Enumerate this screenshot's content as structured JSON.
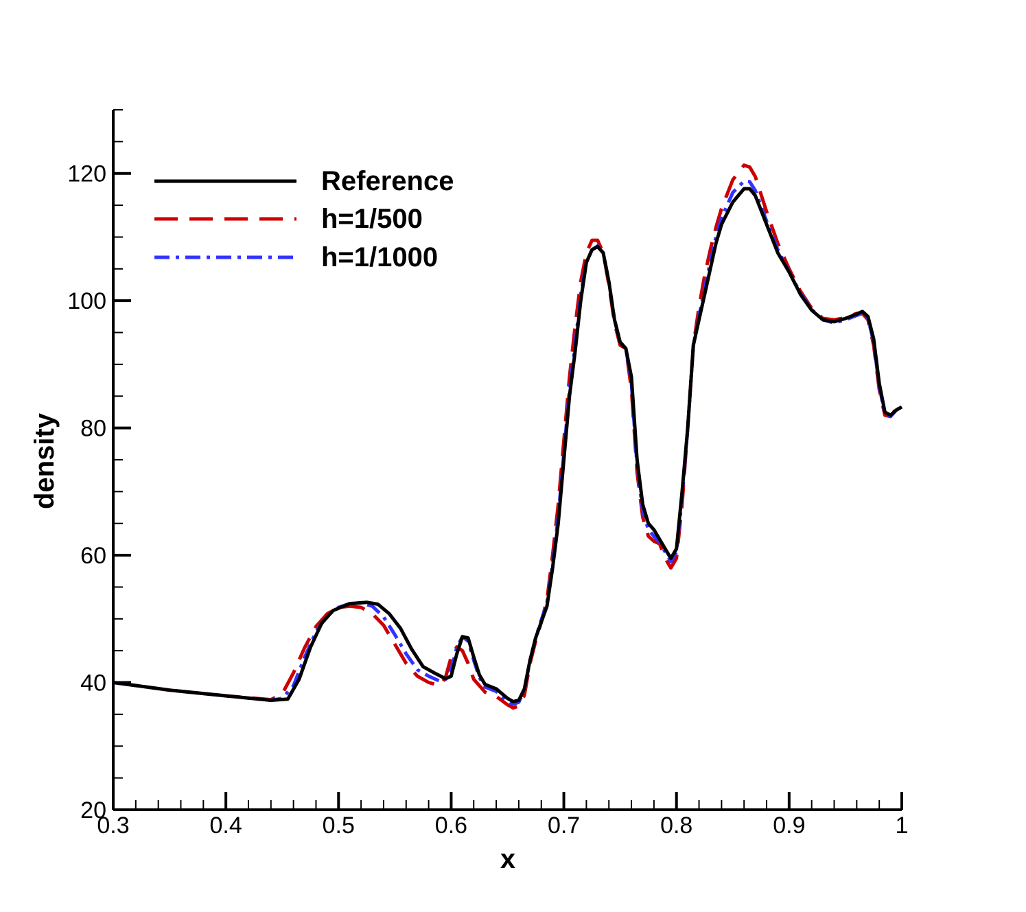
{
  "chart_data": {
    "type": "line",
    "title": "",
    "xlabel": "x",
    "ylabel": "density",
    "xlim": [
      0.3,
      1.0
    ],
    "ylim": [
      20,
      130
    ],
    "x_ticks": [
      0.3,
      0.4,
      0.5,
      0.6,
      0.7,
      0.8,
      0.9,
      1.0
    ],
    "x_tick_labels": [
      "0.3",
      "0.4",
      "0.5",
      "0.6",
      "0.7",
      "0.8",
      "0.9",
      "1"
    ],
    "y_ticks": [
      20,
      40,
      60,
      80,
      100,
      120
    ],
    "y_tick_labels": [
      "20",
      "40",
      "60",
      "80",
      "100",
      "120"
    ],
    "grid": false,
    "legend_position": "top-left",
    "series": [
      {
        "name": "Reference",
        "color": "#000000",
        "dash": "solid",
        "points": [
          [
            0.3,
            40.0
          ],
          [
            0.35,
            38.8
          ],
          [
            0.4,
            37.9
          ],
          [
            0.44,
            37.2
          ],
          [
            0.455,
            37.4
          ],
          [
            0.465,
            40.5
          ],
          [
            0.475,
            45.5
          ],
          [
            0.485,
            49.3
          ],
          [
            0.495,
            51.3
          ],
          [
            0.51,
            52.4
          ],
          [
            0.525,
            52.6
          ],
          [
            0.535,
            52.3
          ],
          [
            0.545,
            50.8
          ],
          [
            0.555,
            48.5
          ],
          [
            0.565,
            45.2
          ],
          [
            0.575,
            42.5
          ],
          [
            0.585,
            41.5
          ],
          [
            0.595,
            40.6
          ],
          [
            0.6,
            41.0
          ],
          [
            0.605,
            44.5
          ],
          [
            0.61,
            47.2
          ],
          [
            0.615,
            47.0
          ],
          [
            0.62,
            44.0
          ],
          [
            0.625,
            41.2
          ],
          [
            0.63,
            39.7
          ],
          [
            0.64,
            39.0
          ],
          [
            0.65,
            37.5
          ],
          [
            0.655,
            37.0
          ],
          [
            0.66,
            37.2
          ],
          [
            0.665,
            39.0
          ],
          [
            0.67,
            43.5
          ],
          [
            0.675,
            47.0
          ],
          [
            0.68,
            49.5
          ],
          [
            0.685,
            52.0
          ],
          [
            0.69,
            58.0
          ],
          [
            0.695,
            65.0
          ],
          [
            0.7,
            75.0
          ],
          [
            0.705,
            85.0
          ],
          [
            0.71,
            92.0
          ],
          [
            0.715,
            100.0
          ],
          [
            0.72,
            106.0
          ],
          [
            0.725,
            108.0
          ],
          [
            0.73,
            108.5
          ],
          [
            0.735,
            107.5
          ],
          [
            0.74,
            103.0
          ],
          [
            0.745,
            97.0
          ],
          [
            0.75,
            93.5
          ],
          [
            0.755,
            92.5
          ],
          [
            0.76,
            88.0
          ],
          [
            0.765,
            75.0
          ],
          [
            0.77,
            68.0
          ],
          [
            0.775,
            65.0
          ],
          [
            0.78,
            64.0
          ],
          [
            0.785,
            62.5
          ],
          [
            0.79,
            61.0
          ],
          [
            0.795,
            59.5
          ],
          [
            0.8,
            61.0
          ],
          [
            0.805,
            70.0
          ],
          [
            0.81,
            80.0
          ],
          [
            0.815,
            93.0
          ],
          [
            0.82,
            97.0
          ],
          [
            0.825,
            101.0
          ],
          [
            0.83,
            105.0
          ],
          [
            0.835,
            109.0
          ],
          [
            0.84,
            112.0
          ],
          [
            0.85,
            115.5
          ],
          [
            0.86,
            117.6
          ],
          [
            0.865,
            117.6
          ],
          [
            0.87,
            116.5
          ],
          [
            0.88,
            112.0
          ],
          [
            0.89,
            107.5
          ],
          [
            0.9,
            104.5
          ],
          [
            0.91,
            101.0
          ],
          [
            0.92,
            98.5
          ],
          [
            0.93,
            97.0
          ],
          [
            0.94,
            96.7
          ],
          [
            0.95,
            97.2
          ],
          [
            0.96,
            97.9
          ],
          [
            0.965,
            98.3
          ],
          [
            0.97,
            97.5
          ],
          [
            0.975,
            94.0
          ],
          [
            0.98,
            87.0
          ],
          [
            0.985,
            82.5
          ],
          [
            0.99,
            82.0
          ],
          [
            0.995,
            82.8
          ],
          [
            1.0,
            83.3
          ]
        ]
      },
      {
        "name": "h=1/500",
        "color": "#cc0000",
        "dash": "dashed",
        "points": [
          [
            0.3,
            40.0
          ],
          [
            0.35,
            38.8
          ],
          [
            0.4,
            37.9
          ],
          [
            0.44,
            37.3
          ],
          [
            0.45,
            38.2
          ],
          [
            0.46,
            41.5
          ],
          [
            0.47,
            45.5
          ],
          [
            0.48,
            48.8
          ],
          [
            0.49,
            50.8
          ],
          [
            0.5,
            51.8
          ],
          [
            0.51,
            52.0
          ],
          [
            0.52,
            51.8
          ],
          [
            0.53,
            50.8
          ],
          [
            0.54,
            49.0
          ],
          [
            0.55,
            46.0
          ],
          [
            0.56,
            43.0
          ],
          [
            0.57,
            41.0
          ],
          [
            0.58,
            40.0
          ],
          [
            0.59,
            39.5
          ],
          [
            0.595,
            40.8
          ],
          [
            0.6,
            44.0
          ],
          [
            0.605,
            45.6
          ],
          [
            0.61,
            45.0
          ],
          [
            0.615,
            43.0
          ],
          [
            0.62,
            40.5
          ],
          [
            0.63,
            38.5
          ],
          [
            0.64,
            37.8
          ],
          [
            0.65,
            36.5
          ],
          [
            0.655,
            36.0
          ],
          [
            0.66,
            36.3
          ],
          [
            0.665,
            38.0
          ],
          [
            0.67,
            43.0
          ],
          [
            0.675,
            46.5
          ],
          [
            0.68,
            49.5
          ],
          [
            0.685,
            53.0
          ],
          [
            0.69,
            60.0
          ],
          [
            0.695,
            68.0
          ],
          [
            0.7,
            78.0
          ],
          [
            0.705,
            88.0
          ],
          [
            0.71,
            96.0
          ],
          [
            0.715,
            103.0
          ],
          [
            0.72,
            107.5
          ],
          [
            0.725,
            109.5
          ],
          [
            0.73,
            109.5
          ],
          [
            0.735,
            107.5
          ],
          [
            0.74,
            102.5
          ],
          [
            0.745,
            96.5
          ],
          [
            0.75,
            93.0
          ],
          [
            0.755,
            92.5
          ],
          [
            0.76,
            86.0
          ],
          [
            0.765,
            73.0
          ],
          [
            0.77,
            66.0
          ],
          [
            0.775,
            63.0
          ],
          [
            0.78,
            62.2
          ],
          [
            0.785,
            61.8
          ],
          [
            0.79,
            59.5
          ],
          [
            0.795,
            58.0
          ],
          [
            0.8,
            59.5
          ],
          [
            0.805,
            68.0
          ],
          [
            0.81,
            80.0
          ],
          [
            0.815,
            93.0
          ],
          [
            0.82,
            99.0
          ],
          [
            0.825,
            104.0
          ],
          [
            0.83,
            108.0
          ],
          [
            0.835,
            111.5
          ],
          [
            0.84,
            114.5
          ],
          [
            0.85,
            119.0
          ],
          [
            0.86,
            121.3
          ],
          [
            0.865,
            121.0
          ],
          [
            0.87,
            119.5
          ],
          [
            0.88,
            114.0
          ],
          [
            0.89,
            109.0
          ],
          [
            0.9,
            105.0
          ],
          [
            0.91,
            101.5
          ],
          [
            0.92,
            98.8
          ],
          [
            0.93,
            97.2
          ],
          [
            0.94,
            97.0
          ],
          [
            0.95,
            97.3
          ],
          [
            0.96,
            98.0
          ],
          [
            0.965,
            98.0
          ],
          [
            0.97,
            97.0
          ],
          [
            0.975,
            93.0
          ],
          [
            0.98,
            86.0
          ],
          [
            0.985,
            82.0
          ],
          [
            0.99,
            81.8
          ],
          [
            0.995,
            83.0
          ],
          [
            1.0,
            83.6
          ]
        ]
      },
      {
        "name": "h=1/1000",
        "color": "#3333ff",
        "dash": "dashdot",
        "points": [
          [
            0.3,
            40.0
          ],
          [
            0.35,
            38.8
          ],
          [
            0.4,
            37.9
          ],
          [
            0.44,
            37.2
          ],
          [
            0.45,
            37.5
          ],
          [
            0.46,
            39.5
          ],
          [
            0.47,
            44.0
          ],
          [
            0.48,
            48.0
          ],
          [
            0.49,
            50.5
          ],
          [
            0.5,
            51.8
          ],
          [
            0.51,
            52.4
          ],
          [
            0.52,
            52.5
          ],
          [
            0.53,
            52.0
          ],
          [
            0.54,
            50.3
          ],
          [
            0.55,
            47.5
          ],
          [
            0.56,
            44.5
          ],
          [
            0.57,
            42.0
          ],
          [
            0.58,
            41.0
          ],
          [
            0.59,
            40.2
          ],
          [
            0.595,
            40.5
          ],
          [
            0.6,
            42.0
          ],
          [
            0.605,
            45.5
          ],
          [
            0.61,
            47.2
          ],
          [
            0.615,
            46.5
          ],
          [
            0.62,
            43.5
          ],
          [
            0.625,
            40.8
          ],
          [
            0.63,
            39.3
          ],
          [
            0.64,
            38.6
          ],
          [
            0.65,
            37.0
          ],
          [
            0.655,
            36.6
          ],
          [
            0.66,
            36.9
          ],
          [
            0.665,
            38.8
          ],
          [
            0.67,
            43.5
          ],
          [
            0.675,
            47.0
          ],
          [
            0.68,
            49.8
          ],
          [
            0.685,
            52.5
          ],
          [
            0.69,
            58.5
          ],
          [
            0.695,
            66.0
          ],
          [
            0.7,
            76.0
          ],
          [
            0.705,
            86.0
          ],
          [
            0.71,
            93.0
          ],
          [
            0.715,
            101.0
          ],
          [
            0.72,
            106.0
          ],
          [
            0.725,
            108.0
          ],
          [
            0.73,
            108.6
          ],
          [
            0.735,
            107.5
          ],
          [
            0.74,
            103.0
          ],
          [
            0.745,
            97.0
          ],
          [
            0.75,
            93.5
          ],
          [
            0.755,
            92.5
          ],
          [
            0.76,
            87.0
          ],
          [
            0.765,
            74.0
          ],
          [
            0.77,
            67.0
          ],
          [
            0.775,
            64.0
          ],
          [
            0.78,
            63.0
          ],
          [
            0.785,
            62.0
          ],
          [
            0.79,
            60.5
          ],
          [
            0.795,
            59.0
          ],
          [
            0.8,
            60.5
          ],
          [
            0.805,
            69.0
          ],
          [
            0.81,
            80.0
          ],
          [
            0.815,
            93.0
          ],
          [
            0.82,
            97.5
          ],
          [
            0.825,
            102.0
          ],
          [
            0.83,
            106.0
          ],
          [
            0.835,
            110.0
          ],
          [
            0.84,
            113.0
          ],
          [
            0.85,
            117.0
          ],
          [
            0.86,
            118.8
          ],
          [
            0.865,
            118.7
          ],
          [
            0.87,
            117.3
          ],
          [
            0.88,
            112.5
          ],
          [
            0.89,
            108.0
          ],
          [
            0.9,
            104.5
          ],
          [
            0.91,
            101.2
          ],
          [
            0.92,
            98.6
          ],
          [
            0.93,
            97.0
          ],
          [
            0.94,
            96.5
          ],
          [
            0.95,
            97.0
          ],
          [
            0.96,
            97.7
          ],
          [
            0.965,
            98.0
          ],
          [
            0.97,
            97.2
          ],
          [
            0.975,
            93.5
          ],
          [
            0.98,
            86.5
          ],
          [
            0.985,
            82.2
          ],
          [
            0.99,
            81.8
          ],
          [
            0.995,
            82.8
          ],
          [
            1.0,
            83.4
          ]
        ]
      }
    ]
  }
}
